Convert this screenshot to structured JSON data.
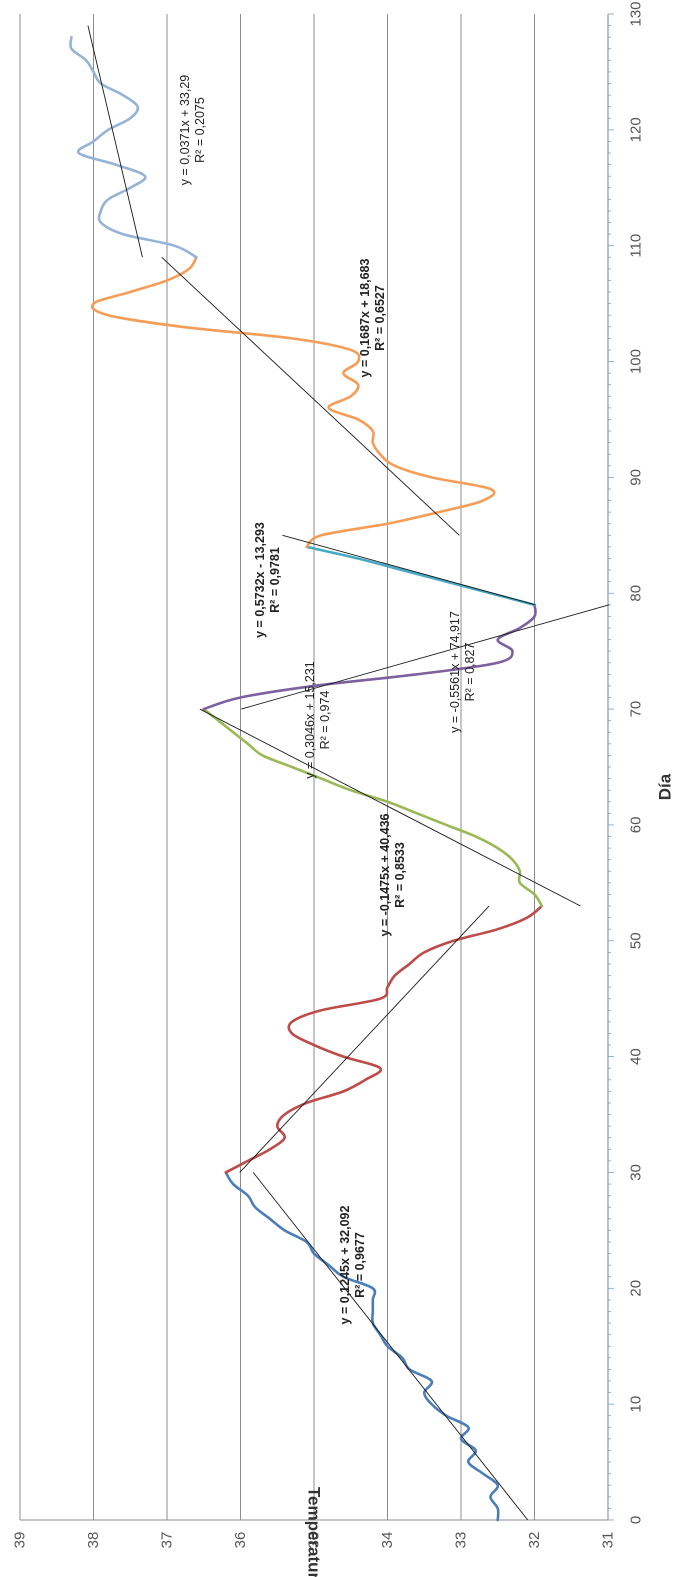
{
  "chart_data": {
    "type": "line",
    "xlabel": "Día",
    "ylabel": "Temperatura (ºC)",
    "xlim": [
      0,
      130
    ],
    "ylim": [
      31,
      39
    ],
    "x_ticks": [
      "0",
      "10",
      "20",
      "30",
      "40",
      "50",
      "60",
      "70",
      "80",
      "90",
      "100",
      "110",
      "120",
      "130"
    ],
    "y_ticks": [
      "31",
      "32",
      "33",
      "34",
      "35",
      "36",
      "37",
      "38",
      "39"
    ],
    "grid": "horizontal",
    "rotation": "rotated 90 degrees clockwise",
    "series": [
      {
        "color": "#4a7ebb",
        "x": [
          0,
          1,
          2,
          3,
          4,
          5,
          6,
          7,
          8,
          9,
          10,
          11,
          12,
          13,
          14,
          15,
          16,
          17,
          18,
          19,
          20,
          21,
          22,
          23,
          24,
          25,
          26,
          27,
          28,
          29,
          30
        ],
        "y": [
          32.5,
          32.5,
          32.6,
          32.5,
          32.7,
          32.9,
          32.8,
          33.0,
          32.9,
          33.2,
          33.4,
          33.5,
          33.4,
          33.7,
          33.8,
          34.0,
          34.1,
          34.2,
          34.2,
          34.2,
          34.2,
          34.6,
          34.8,
          35.0,
          35.1,
          35.4,
          35.6,
          35.8,
          35.9,
          36.1,
          36.2
        ]
      },
      {
        "color": "#be4b48",
        "x": [
          30,
          31,
          32,
          33,
          34,
          35,
          36,
          37,
          38,
          39,
          40,
          41,
          42,
          43,
          44,
          45,
          46,
          47,
          48,
          49,
          50,
          51,
          52,
          53
        ],
        "y": [
          36.2,
          35.9,
          35.6,
          35.4,
          35.5,
          35.4,
          35.1,
          34.6,
          34.3,
          34.1,
          34.6,
          35.0,
          35.3,
          35.3,
          34.9,
          34.1,
          34.0,
          33.9,
          33.7,
          33.5,
          33.1,
          32.5,
          32.1,
          31.9
        ]
      },
      {
        "color": "#98b954",
        "x": [
          53,
          54,
          55,
          56,
          57,
          58,
          59,
          60,
          61,
          62,
          63,
          64,
          65,
          66,
          67,
          68,
          69,
          70
        ],
        "y": [
          31.9,
          32.0,
          32.2,
          32.2,
          32.3,
          32.5,
          32.8,
          33.2,
          33.6,
          34.0,
          34.5,
          34.9,
          35.3,
          35.7,
          35.9,
          36.1,
          36.3,
          36.5
        ]
      },
      {
        "color": "#7d60a0",
        "x": [
          70,
          71,
          72,
          73,
          74,
          75,
          76,
          77,
          78,
          79
        ],
        "y": [
          36.5,
          36.0,
          35.0,
          33.6,
          32.5,
          32.3,
          32.5,
          32.2,
          32.0,
          32.0
        ]
      },
      {
        "color": "#46aac5",
        "x": [
          79,
          80,
          81,
          82,
          83,
          84
        ],
        "y": [
          32.0,
          32.6,
          33.2,
          33.8,
          34.4,
          35.1
        ]
      },
      {
        "color": "#f59d56",
        "x": [
          84,
          85,
          86,
          87,
          88,
          89,
          90,
          91,
          92,
          93,
          94,
          95,
          96,
          97,
          98,
          99,
          100,
          101,
          102,
          103,
          104,
          105,
          106,
          107,
          108,
          109
        ],
        "y": [
          35.1,
          34.9,
          34.0,
          33.3,
          32.7,
          32.6,
          33.4,
          33.9,
          34.1,
          34.2,
          34.2,
          34.4,
          34.8,
          34.5,
          34.4,
          34.6,
          34.4,
          34.5,
          35.3,
          36.8,
          37.8,
          38.0,
          37.5,
          37.0,
          36.7,
          36.6
        ]
      },
      {
        "color": "#93b3d7",
        "x": [
          109,
          110,
          111,
          112,
          113,
          114,
          115,
          116,
          117,
          118,
          119,
          120,
          121,
          122,
          123,
          124,
          125,
          126,
          127,
          128
        ],
        "y": [
          36.6,
          36.9,
          37.6,
          37.9,
          37.9,
          37.8,
          37.5,
          37.3,
          37.7,
          38.2,
          38.0,
          37.8,
          37.5,
          37.4,
          37.6,
          37.9,
          38.0,
          38.1,
          38.3,
          38.3
        ]
      }
    ],
    "trendlines": [
      {
        "slope": 0.1245,
        "intercept": 32.092,
        "x_range": [
          0,
          30
        ],
        "equation": "y = 0,1245x + 32,092",
        "r2": "R² = 0,9677",
        "bold": true
      },
      {
        "slope": -0.1475,
        "intercept": 40.436,
        "x_range": [
          30,
          53
        ],
        "equation": "y = -0,1475x + 40,436",
        "r2": "R² = 0,8533",
        "bold": true
      },
      {
        "slope": 0.3046,
        "intercept": 15.231,
        "x_range": [
          53,
          70
        ],
        "equation": "y = 0,3046x + 15,231",
        "r2": "R² = 0,974",
        "bold": false
      },
      {
        "slope": -0.5561,
        "intercept": 74.917,
        "x_range": [
          70,
          79
        ],
        "equation": "y = -0,5561x + 74,917",
        "r2": "R² = 0,827",
        "bold": false
      },
      {
        "slope": 0.5732,
        "intercept": -13.293,
        "x_range": [
          79,
          85
        ],
        "equation": "y = 0,5732x - 13,293",
        "r2": "R² = 0,9781",
        "bold": true
      },
      {
        "slope": 0.1687,
        "intercept": 18.683,
        "x_range": [
          85,
          109
        ],
        "equation": "y = 0,1687x + 18,683",
        "r2": "R² = 0,6527",
        "bold": true
      },
      {
        "slope": 0.0371,
        "intercept": 33.29,
        "x_range": [
          109,
          129
        ],
        "equation": "y = 0,0371x + 33,29",
        "r2": "R² = 0,2075",
        "bold": false
      }
    ]
  }
}
